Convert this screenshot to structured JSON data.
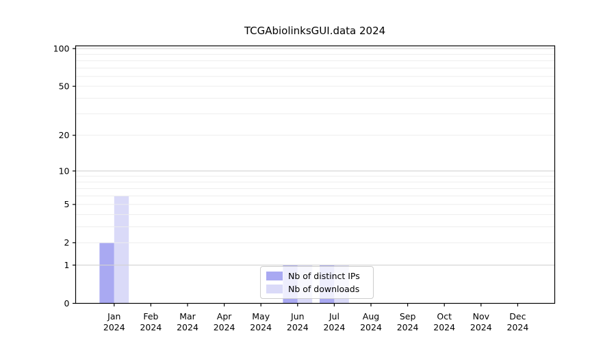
{
  "chart_data": {
    "type": "bar",
    "title": "TCGAbiolinksGUI.data 2024",
    "categories": [
      "Jan",
      "Feb",
      "Mar",
      "Apr",
      "May",
      "Jun",
      "Jul",
      "Aug",
      "Sep",
      "Oct",
      "Nov",
      "Dec"
    ],
    "x_tick_second_line": "2024",
    "series": [
      {
        "name": "Nb of distinct IPs",
        "color": "#a9a9f2",
        "values": [
          2,
          0,
          0,
          0,
          0,
          1,
          1,
          0,
          0,
          0,
          0,
          0
        ]
      },
      {
        "name": "Nb of downloads",
        "color": "#dadaf8",
        "values": [
          6,
          0,
          0,
          0,
          0,
          1,
          1,
          0,
          0,
          0,
          0,
          0
        ]
      }
    ],
    "y_scale": "log1p",
    "ylim": [
      0,
      100
    ],
    "y_ticks": [
      0,
      1,
      2,
      5,
      10,
      20,
      50,
      100
    ],
    "y_major_gridlines": [
      1,
      10,
      100
    ],
    "y_minor_gridlines": [
      2,
      3,
      4,
      5,
      6,
      7,
      8,
      9,
      20,
      30,
      40,
      50,
      60,
      70,
      80,
      90
    ],
    "grid": true,
    "legend_position": "lower center",
    "colors": {
      "major_grid": "#d2d2d2",
      "minor_grid": "#ededed",
      "axis": "#000000",
      "legend_border": "#cccccc"
    }
  }
}
